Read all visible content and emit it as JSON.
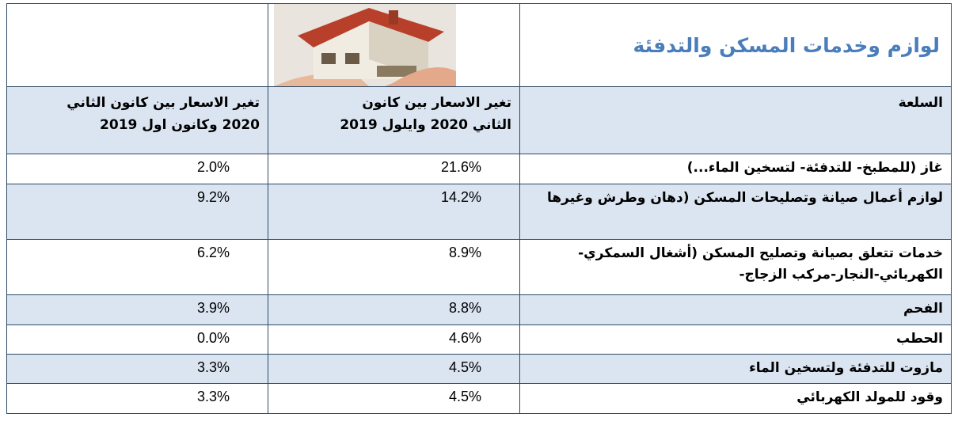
{
  "title": "لوازم وخدمات المسكن والتدفئة",
  "header": {
    "item": "السلعة",
    "col1": [
      "تغير الاسعار بين كانون",
      "الثاني 2020 وايلول 2019"
    ],
    "col2": [
      "تغير الاسعار بين كانون الثاني",
      "2020 وكانون اول 2019"
    ]
  },
  "rows": [
    [
      "غاز (للمطبخ- للتدفئة- لتسخين الماء...)",
      "21.6%",
      "2.0%"
    ],
    [
      "لوازم أعمال صيانة وتصليحات المسكن (دهان وطرش وغيرها",
      "14.2%",
      "9.2%"
    ],
    [
      "خدمات تتعلق بصيانة وتصليح المسكن (أشغال السمكري-الكهربائي-النجار-مركب الزجاج-",
      "8.9%",
      "6.2%"
    ],
    [
      "الفحم",
      "8.8%",
      "3.9%"
    ],
    [
      "الحطب",
      "4.6%",
      "0.0%"
    ],
    [
      "مازوت للتدفئة ولتسخين الماء",
      "4.5%",
      "3.3%"
    ],
    [
      "وقود للمولد الكهربائي",
      "4.5%",
      "3.3%"
    ]
  ]
}
